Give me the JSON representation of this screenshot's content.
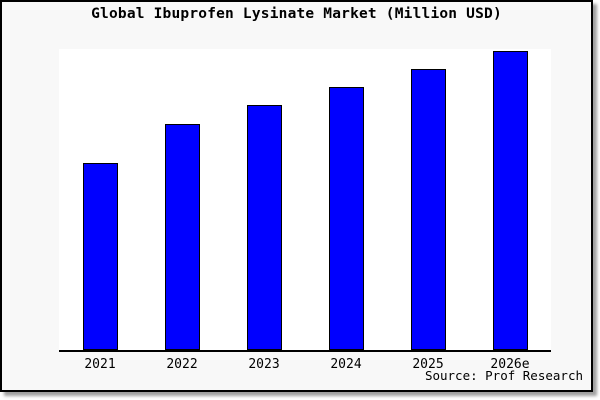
{
  "window": {
    "background": "#f8f8f8",
    "border_color": "#000000",
    "plot_background": "#ffffff"
  },
  "footer": {
    "source_label": "Source: Prof Research"
  },
  "chart_data": {
    "type": "bar",
    "title": "Global Ibuprofen Lysinate Market (Million USD)",
    "categories": [
      "2021",
      "2022",
      "2023",
      "2024",
      "2025",
      "2026e"
    ],
    "values": [
      62.5,
      75.6,
      81.9,
      88.0,
      94.0,
      100.0
    ],
    "value_scale_note": "no y-axis tick labels shown; values estimated as percent of 2026e bar",
    "xlabel": "",
    "ylabel": "",
    "ylim": [
      0,
      100.7
    ],
    "grid": false,
    "legend": false,
    "y_axis_visible": false,
    "bar_color": "#0000ff",
    "bar_edge_color": "#000000",
    "source": "Prof Research"
  }
}
